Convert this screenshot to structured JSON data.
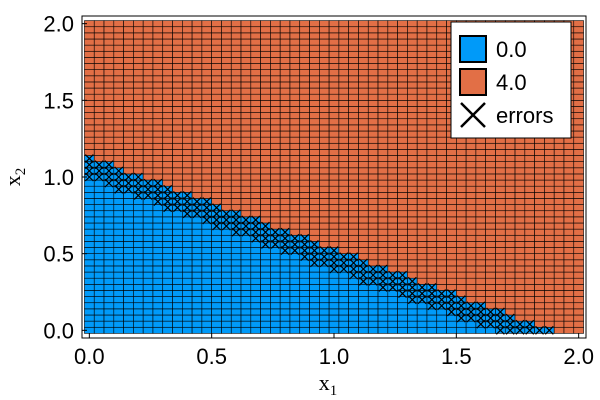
{
  "chart_data": {
    "type": "heatmap",
    "xlabel": "x",
    "xlabel_sub": "1",
    "ylabel": "x",
    "ylabel_sub": "2",
    "xlim": [
      -0.03,
      2.03
    ],
    "ylim": [
      -0.05,
      2.05
    ],
    "x_ticks": [
      {
        "value": 0.0,
        "label": "0.0"
      },
      {
        "value": 0.5,
        "label": "0.5"
      },
      {
        "value": 1.0,
        "label": "1.0"
      },
      {
        "value": 1.5,
        "label": "1.5"
      },
      {
        "value": 2.0,
        "label": "2.0"
      }
    ],
    "y_ticks": [
      {
        "value": 0.0,
        "label": "0.0"
      },
      {
        "value": 0.5,
        "label": "0.5"
      },
      {
        "value": 1.0,
        "label": "1.0"
      },
      {
        "value": 1.5,
        "label": "1.5"
      },
      {
        "value": 2.0,
        "label": "2.0"
      }
    ],
    "grid_min": 0.0,
    "grid_max": 2.0,
    "grid_step": 0.04,
    "class_boundary": {
      "intercept": 1.13,
      "slope": -0.6
    },
    "classes": [
      {
        "name": "0.0",
        "color": "#009af9"
      },
      {
        "name": "4.0",
        "color": "#e26f46"
      }
    ],
    "errors": {
      "name": "errors",
      "band_low": 0.99,
      "band_high": 1.13
    },
    "legend_position": "top-right",
    "grid": false
  }
}
